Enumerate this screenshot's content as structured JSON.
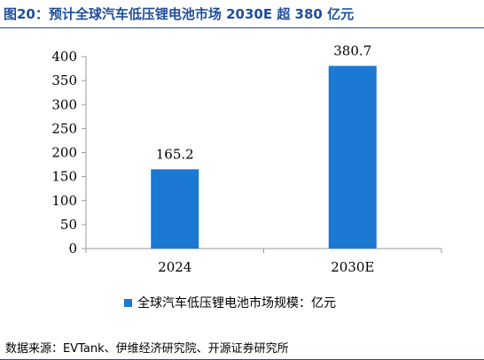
{
  "title": "图20：预计全球汽车低压锂电池市场 2030E 超 380 亿元",
  "source": "数据来源：EVTank、伊维经济研究院、开源证券研究所",
  "colors": {
    "bar": "#1b78d3",
    "title": "#1f4e9a"
  },
  "chart_data": {
    "type": "bar",
    "categories": [
      "2024",
      "2030E"
    ],
    "series": [
      {
        "name": "全球汽车低压锂电池市场规模：亿元",
        "values": [
          165.2,
          380.7
        ]
      }
    ],
    "data_labels": [
      "165.2",
      "380.7"
    ],
    "ylim": [
      0,
      400
    ],
    "yticks": [
      0,
      50,
      100,
      150,
      200,
      250,
      300,
      350,
      400
    ],
    "grid": false,
    "legend_position": "bottom"
  }
}
